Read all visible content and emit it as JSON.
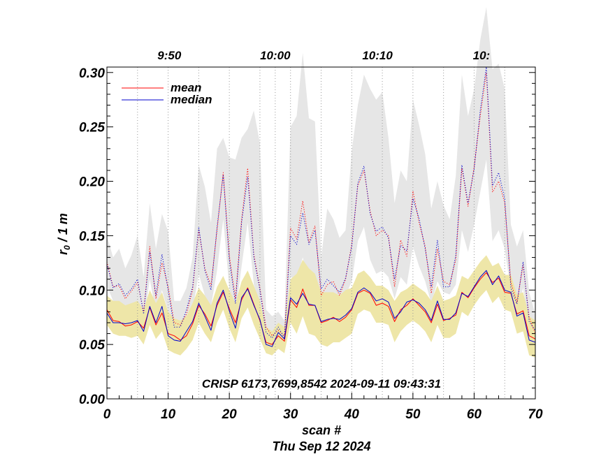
{
  "chart_data": {
    "type": "line",
    "title": "",
    "annotation": "CRISP 6173,7699,8542 2024-09-11 09:43:31",
    "xlabel": "scan #",
    "date_label": "Thu Sep 12 2024",
    "ylabel_main": "r",
    "ylabel_sub": "0",
    "ylabel_rest": " / 1 m",
    "xlim": [
      0,
      70
    ],
    "ylim": [
      0,
      0.305
    ],
    "x_ticks": [
      0,
      10,
      20,
      30,
      40,
      50,
      60,
      70
    ],
    "x_tick_labels": [
      "0",
      "10",
      "20",
      "30",
      "40",
      "50",
      "60",
      "70"
    ],
    "y_ticks": [
      0,
      0.05,
      0.1,
      0.15,
      0.2,
      0.25,
      0.3
    ],
    "y_tick_labels": [
      "0.00",
      "0.05",
      "0.10",
      "0.15",
      "0.20",
      "0.25",
      "0.30"
    ],
    "time_ticks": [
      {
        "scan": 10.2,
        "label": "9:50"
      },
      {
        "scan": 27.5,
        "label": "10:00"
      },
      {
        "scan": 44.2,
        "label": "10:10"
      },
      {
        "scan": 61.2,
        "label": "10:"
      }
    ],
    "time_gridlines": [
      5,
      10,
      15,
      20,
      25,
      27.5,
      30,
      35,
      40,
      45,
      50,
      55,
      60,
      65
    ],
    "legend": {
      "position": "top-left",
      "entries": [
        {
          "label": "mean",
          "color": "#ff0000"
        },
        {
          "label": "median",
          "color": "#0000cc"
        }
      ]
    },
    "colors": {
      "mean": "#ff0000",
      "median": "#0000cc",
      "upper_band": "#e6e6e6",
      "lower_band": "#eee6a8"
    },
    "x": [
      0,
      1,
      2,
      3,
      4,
      5,
      6,
      7,
      8,
      9,
      10,
      11,
      12,
      13,
      14,
      15,
      16,
      17,
      18,
      19,
      20,
      21,
      22,
      23,
      24,
      25,
      26,
      27,
      28,
      29,
      30,
      31,
      32,
      33,
      34,
      35,
      36,
      37,
      38,
      39,
      40,
      41,
      42,
      43,
      44,
      45,
      46,
      47,
      48,
      49,
      50,
      51,
      52,
      53,
      54,
      55,
      56,
      57,
      58,
      59,
      60,
      61,
      62,
      63,
      64,
      65,
      66,
      67,
      68,
      69,
      70
    ],
    "series": [
      {
        "name": "mean (lower)",
        "style": "solid",
        "color": "#ff0000",
        "values": [
          0.082,
          0.072,
          0.071,
          0.067,
          0.068,
          0.071,
          0.065,
          0.084,
          0.068,
          0.079,
          0.06,
          0.058,
          0.054,
          0.058,
          0.069,
          0.086,
          0.078,
          0.067,
          0.086,
          0.098,
          0.083,
          0.07,
          0.091,
          0.102,
          0.087,
          0.072,
          0.052,
          0.05,
          0.058,
          0.053,
          0.091,
          0.084,
          0.101,
          0.086,
          0.086,
          0.07,
          0.072,
          0.075,
          0.071,
          0.075,
          0.082,
          0.097,
          0.1,
          0.097,
          0.086,
          0.088,
          0.085,
          0.071,
          0.082,
          0.086,
          0.092,
          0.086,
          0.08,
          0.07,
          0.087,
          0.072,
          0.074,
          0.077,
          0.098,
          0.093,
          0.102,
          0.11,
          0.116,
          0.107,
          0.111,
          0.098,
          0.097,
          0.078,
          0.081,
          0.058,
          0.055
        ]
      },
      {
        "name": "median (lower)",
        "style": "solid",
        "color": "#0000cc",
        "values": [
          0.079,
          0.07,
          0.07,
          0.069,
          0.07,
          0.072,
          0.062,
          0.085,
          0.07,
          0.085,
          0.058,
          0.054,
          0.053,
          0.062,
          0.071,
          0.088,
          0.076,
          0.063,
          0.088,
          0.1,
          0.081,
          0.065,
          0.093,
          0.101,
          0.086,
          0.073,
          0.05,
          0.048,
          0.061,
          0.055,
          0.093,
          0.087,
          0.097,
          0.087,
          0.086,
          0.071,
          0.073,
          0.074,
          0.073,
          0.077,
          0.083,
          0.098,
          0.102,
          0.098,
          0.09,
          0.092,
          0.089,
          0.074,
          0.08,
          0.089,
          0.091,
          0.088,
          0.082,
          0.072,
          0.09,
          0.073,
          0.073,
          0.079,
          0.097,
          0.094,
          0.103,
          0.112,
          0.118,
          0.105,
          0.113,
          0.1,
          0.098,
          0.076,
          0.079,
          0.054,
          0.052
        ]
      },
      {
        "name": "mean (upper)",
        "style": "dotted",
        "color": "#ff0000",
        "values": [
          0.126,
          0.103,
          0.104,
          0.092,
          0.099,
          0.107,
          0.08,
          0.14,
          0.092,
          0.125,
          0.103,
          0.07,
          0.068,
          0.078,
          0.1,
          0.155,
          0.12,
          0.104,
          0.155,
          0.208,
          0.132,
          0.092,
          0.165,
          0.212,
          0.133,
          0.102,
          0.066,
          0.058,
          0.063,
          0.058,
          0.157,
          0.147,
          0.182,
          0.144,
          0.159,
          0.095,
          0.105,
          0.108,
          0.095,
          0.11,
          0.142,
          0.196,
          0.21,
          0.173,
          0.15,
          0.155,
          0.15,
          0.103,
          0.146,
          0.131,
          0.191,
          0.162,
          0.14,
          0.097,
          0.138,
          0.108,
          0.105,
          0.128,
          0.212,
          0.177,
          0.213,
          0.26,
          0.3,
          0.19,
          0.2,
          0.18,
          0.107,
          0.089,
          0.123,
          0.075,
          0.06
        ]
      },
      {
        "name": "median (upper)",
        "style": "dotted",
        "color": "#0000cc",
        "values": [
          0.124,
          0.102,
          0.106,
          0.095,
          0.101,
          0.11,
          0.078,
          0.135,
          0.095,
          0.133,
          0.1,
          0.066,
          0.066,
          0.082,
          0.103,
          0.158,
          0.118,
          0.1,
          0.158,
          0.206,
          0.128,
          0.088,
          0.162,
          0.204,
          0.13,
          0.1,
          0.061,
          0.056,
          0.066,
          0.056,
          0.15,
          0.142,
          0.171,
          0.142,
          0.155,
          0.101,
          0.11,
          0.104,
          0.098,
          0.111,
          0.14,
          0.198,
          0.214,
          0.17,
          0.154,
          0.158,
          0.148,
          0.11,
          0.141,
          0.136,
          0.184,
          0.166,
          0.138,
          0.103,
          0.146,
          0.103,
          0.103,
          0.132,
          0.215,
          0.18,
          0.211,
          0.265,
          0.305,
          0.196,
          0.208,
          0.184,
          0.102,
          0.087,
          0.126,
          0.071,
          0.063
        ]
      }
    ],
    "bands": [
      {
        "name": "upper range",
        "color": "#e6e6e6",
        "top": [
          0.15,
          0.13,
          0.138,
          0.12,
          0.132,
          0.15,
          0.112,
          0.18,
          0.138,
          0.17,
          0.154,
          0.09,
          0.09,
          0.102,
          0.13,
          0.215,
          0.195,
          0.162,
          0.23,
          0.24,
          0.222,
          0.22,
          0.24,
          0.248,
          0.265,
          0.235,
          0.082,
          0.076,
          0.08,
          0.072,
          0.25,
          0.26,
          0.318,
          0.258,
          0.255,
          0.13,
          0.175,
          0.165,
          0.148,
          0.155,
          0.228,
          0.27,
          0.298,
          0.285,
          0.275,
          0.282,
          0.24,
          0.18,
          0.21,
          0.2,
          0.275,
          0.252,
          0.225,
          0.175,
          0.2,
          0.178,
          0.165,
          0.205,
          0.298,
          0.26,
          0.285,
          0.33,
          0.36,
          0.303,
          0.308,
          0.285,
          0.16,
          0.14,
          0.155,
          0.098,
          0.078
        ],
        "bottom": [
          0.104,
          0.09,
          0.088,
          0.08,
          0.086,
          0.09,
          0.07,
          0.11,
          0.08,
          0.1,
          0.08,
          0.062,
          0.06,
          0.068,
          0.082,
          0.115,
          0.095,
          0.085,
          0.118,
          0.165,
          0.102,
          0.078,
          0.122,
          0.162,
          0.105,
          0.085,
          0.058,
          0.054,
          0.058,
          0.054,
          0.112,
          0.11,
          0.13,
          0.11,
          0.115,
          0.088,
          0.092,
          0.094,
          0.088,
          0.095,
          0.108,
          0.145,
          0.158,
          0.128,
          0.115,
          0.118,
          0.112,
          0.092,
          0.112,
          0.105,
          0.14,
          0.122,
          0.108,
          0.088,
          0.108,
          0.098,
          0.096,
          0.105,
          0.155,
          0.135,
          0.16,
          0.19,
          0.22,
          0.145,
          0.155,
          0.138,
          0.098,
          0.08,
          0.102,
          0.065,
          0.055
        ]
      },
      {
        "name": "lower range",
        "color": "#eee6a8",
        "top": [
          0.095,
          0.09,
          0.09,
          0.086,
          0.088,
          0.09,
          0.082,
          0.1,
          0.088,
          0.098,
          0.08,
          0.074,
          0.072,
          0.076,
          0.088,
          0.102,
          0.095,
          0.086,
          0.103,
          0.113,
          0.1,
          0.088,
          0.108,
          0.118,
          0.104,
          0.09,
          0.066,
          0.062,
          0.07,
          0.066,
          0.11,
          0.115,
          0.128,
          0.12,
          0.115,
          0.098,
          0.098,
          0.098,
          0.095,
          0.1,
          0.102,
          0.115,
          0.118,
          0.112,
          0.104,
          0.104,
          0.1,
          0.09,
          0.098,
          0.101,
          0.106,
          0.102,
          0.098,
          0.09,
          0.104,
          0.09,
          0.092,
          0.095,
          0.113,
          0.11,
          0.118,
          0.126,
          0.132,
          0.122,
          0.125,
          0.114,
          0.114,
          0.096,
          0.098,
          0.076,
          0.072
        ],
        "bottom": [
          0.068,
          0.06,
          0.058,
          0.058,
          0.056,
          0.058,
          0.05,
          0.068,
          0.055,
          0.062,
          0.045,
          0.042,
          0.04,
          0.046,
          0.054,
          0.07,
          0.06,
          0.052,
          0.07,
          0.082,
          0.065,
          0.052,
          0.074,
          0.084,
          0.068,
          0.055,
          0.042,
          0.04,
          0.046,
          0.042,
          0.07,
          0.06,
          0.076,
          0.06,
          0.058,
          0.05,
          0.048,
          0.052,
          0.052,
          0.056,
          0.06,
          0.078,
          0.082,
          0.08,
          0.07,
          0.07,
          0.068,
          0.052,
          0.062,
          0.068,
          0.072,
          0.068,
          0.062,
          0.052,
          0.068,
          0.056,
          0.056,
          0.06,
          0.08,
          0.076,
          0.086,
          0.094,
          0.1,
          0.088,
          0.094,
          0.082,
          0.08,
          0.06,
          0.062,
          0.04,
          0.038
        ]
      }
    ]
  }
}
